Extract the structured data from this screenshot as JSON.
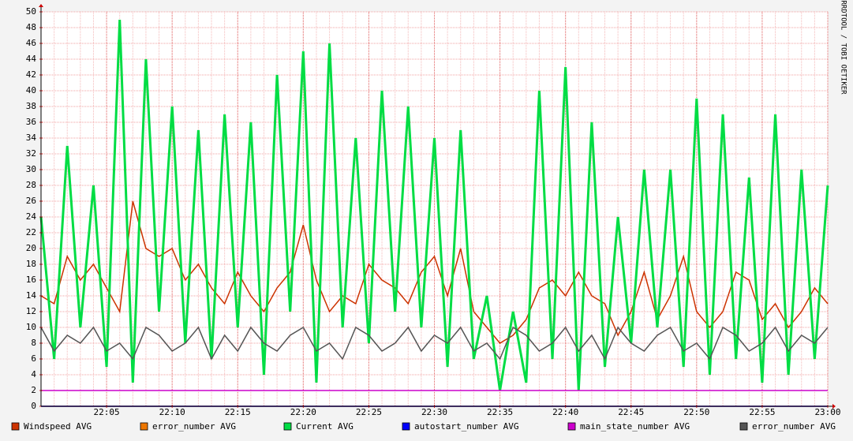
{
  "chart_data": {
    "type": "line",
    "watermark": "RRDTOOL / TOBI OETIKER",
    "xlim": [
      0,
      60
    ],
    "xticks": [
      {
        "value": 5,
        "label": "22:05"
      },
      {
        "value": 10,
        "label": "22:10"
      },
      {
        "value": 15,
        "label": "22:15"
      },
      {
        "value": 20,
        "label": "22:20"
      },
      {
        "value": 25,
        "label": "22:25"
      },
      {
        "value": 30,
        "label": "22:30"
      },
      {
        "value": 35,
        "label": "22:35"
      },
      {
        "value": 40,
        "label": "22:40"
      },
      {
        "value": 45,
        "label": "22:45"
      },
      {
        "value": 50,
        "label": "22:50"
      },
      {
        "value": 55,
        "label": "22:55"
      },
      {
        "value": 60,
        "label": "23:00"
      }
    ],
    "ylim": [
      0,
      50
    ],
    "yticks": [
      0,
      2,
      4,
      6,
      8,
      10,
      12,
      14,
      16,
      18,
      20,
      22,
      24,
      26,
      28,
      30,
      32,
      34,
      36,
      38,
      40,
      42,
      44,
      46,
      48,
      50
    ],
    "grid": true,
    "x": [
      0,
      1,
      2,
      3,
      4,
      5,
      6,
      7,
      8,
      9,
      10,
      11,
      12,
      13,
      14,
      15,
      16,
      17,
      18,
      19,
      20,
      21,
      22,
      23,
      24,
      25,
      26,
      27,
      28,
      29,
      30,
      31,
      32,
      33,
      34,
      35,
      36,
      37,
      38,
      39,
      40,
      41,
      42,
      43,
      44,
      45,
      46,
      47,
      48,
      49,
      50,
      51,
      52,
      53,
      54,
      55,
      56,
      57,
      58,
      59,
      60
    ],
    "series": [
      {
        "name": "Windspeed AVG",
        "color": "#cc3300",
        "values": [
          14,
          13,
          19,
          16,
          18,
          15,
          12,
          26,
          20,
          19,
          20,
          16,
          18,
          15,
          13,
          17,
          14,
          12,
          15,
          17,
          23,
          16,
          12,
          14,
          13,
          18,
          16,
          15,
          13,
          17,
          19,
          14,
          20,
          12,
          10,
          8,
          9,
          11,
          15,
          16,
          14,
          17,
          14,
          13,
          9,
          12,
          17,
          11,
          14,
          19,
          12,
          10,
          12,
          17,
          16,
          11,
          13,
          10,
          12,
          15,
          13
        ]
      },
      {
        "name": "error_number AVG",
        "color": "#ee7700",
        "values": [
          0,
          0,
          0,
          0,
          0,
          0,
          0,
          0,
          0,
          0,
          0,
          0,
          0,
          0,
          0,
          0,
          0,
          0,
          0,
          0,
          0,
          0,
          0,
          0,
          0,
          0,
          0,
          0,
          0,
          0,
          0,
          0,
          0,
          0,
          0,
          0,
          0,
          0,
          0,
          0,
          0,
          0,
          0,
          0,
          0,
          0,
          0,
          0,
          0,
          0,
          0,
          0,
          0,
          0,
          0,
          0,
          0,
          0,
          0,
          0,
          0
        ]
      },
      {
        "name": "Current AVG",
        "color": "#00dd44",
        "values": [
          24,
          6,
          33,
          10,
          28,
          5,
          49,
          3,
          44,
          12,
          38,
          8,
          35,
          6,
          37,
          10,
          36,
          4,
          42,
          12,
          45,
          3,
          46,
          10,
          34,
          8,
          40,
          12,
          38,
          10,
          34,
          5,
          35,
          6,
          14,
          2,
          12,
          3,
          40,
          6,
          43,
          2,
          36,
          5,
          24,
          8,
          30,
          10,
          30,
          5,
          39,
          4,
          37,
          6,
          29,
          3,
          37,
          4,
          30,
          6,
          28
        ]
      },
      {
        "name": "autostart_number AVG",
        "color": "#0000ff",
        "values": [
          0,
          0,
          0,
          0,
          0,
          0,
          0,
          0,
          0,
          0,
          0,
          0,
          0,
          0,
          0,
          0,
          0,
          0,
          0,
          0,
          0,
          0,
          0,
          0,
          0,
          0,
          0,
          0,
          0,
          0,
          0,
          0,
          0,
          0,
          0,
          0,
          0,
          0,
          0,
          0,
          0,
          0,
          0,
          0,
          0,
          0,
          0,
          0,
          0,
          0,
          0,
          0,
          0,
          0,
          0,
          0,
          0,
          0,
          0,
          0,
          0
        ]
      },
      {
        "name": "main_state_number AVG",
        "color": "#cc00cc",
        "values": [
          2,
          2,
          2,
          2,
          2,
          2,
          2,
          2,
          2,
          2,
          2,
          2,
          2,
          2,
          2,
          2,
          2,
          2,
          2,
          2,
          2,
          2,
          2,
          2,
          2,
          2,
          2,
          2,
          2,
          2,
          2,
          2,
          2,
          2,
          2,
          2,
          2,
          2,
          2,
          2,
          2,
          2,
          2,
          2,
          2,
          2,
          2,
          2,
          2,
          2,
          2,
          2,
          2,
          2,
          2,
          2,
          2,
          2,
          2,
          2,
          2
        ]
      },
      {
        "name": "error_number AVG",
        "color": "#555555",
        "values": [
          10,
          7,
          9,
          8,
          10,
          7,
          8,
          6,
          10,
          9,
          7,
          8,
          10,
          6,
          9,
          7,
          10,
          8,
          7,
          9,
          10,
          7,
          8,
          6,
          10,
          9,
          7,
          8,
          10,
          7,
          9,
          8,
          10,
          7,
          8,
          6,
          10,
          9,
          7,
          8,
          10,
          7,
          9,
          6,
          10,
          8,
          7,
          9,
          10,
          7,
          8,
          6,
          10,
          9,
          7,
          8,
          10,
          7,
          9,
          8,
          10
        ]
      }
    ]
  }
}
